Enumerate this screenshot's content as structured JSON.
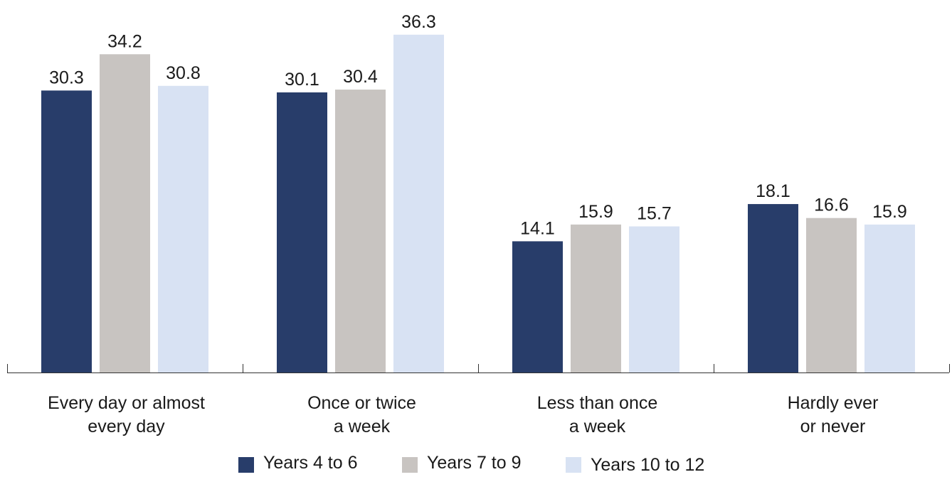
{
  "chart_data": {
    "type": "bar",
    "title": "",
    "xlabel": "",
    "ylabel": "",
    "ylim": [
      0,
      38.5
    ],
    "grid": false,
    "legend_position": "bottom",
    "categories": [
      [
        "Every day or almost",
        "every day"
      ],
      [
        "Once or twice",
        "a week"
      ],
      [
        "Less than once",
        "a week"
      ],
      [
        "Hardly ever",
        "or never"
      ]
    ],
    "series": [
      {
        "name": "Years 4 to 6",
        "color": "#283d6a",
        "values": [
          30.3,
          30.1,
          14.1,
          18.1
        ]
      },
      {
        "name": "Years 7 to 9",
        "color": "#c8c4c1",
        "values": [
          34.2,
          30.4,
          15.9,
          16.6
        ]
      },
      {
        "name": "Years 10 to 12",
        "color": "#d8e2f3",
        "values": [
          30.8,
          36.3,
          15.7,
          15.9
        ]
      }
    ],
    "value_labels": [
      [
        "30.3",
        "30.1",
        "14.1",
        "18.1"
      ],
      [
        "34.2",
        "30.4",
        "15.9",
        "16.6"
      ],
      [
        "30.8",
        "36.3",
        "15.7",
        "15.9"
      ]
    ]
  }
}
